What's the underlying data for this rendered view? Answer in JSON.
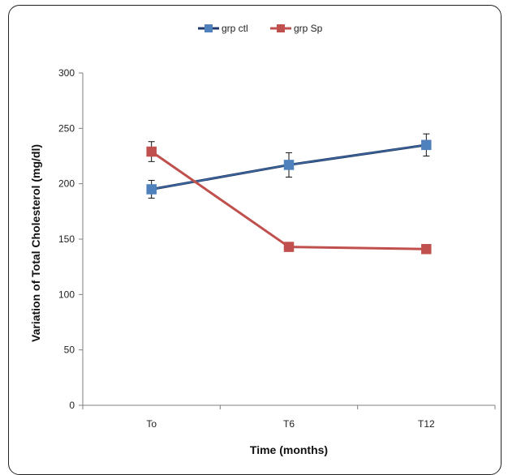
{
  "chart_data": {
    "type": "line",
    "title": "",
    "xlabel": "Time (months)",
    "ylabel": "Variation of Total Cholesterol (mg/dl)",
    "categories": [
      "To",
      "T6",
      "T12"
    ],
    "ylim": [
      0,
      300
    ],
    "yticks": [
      0,
      50,
      100,
      150,
      200,
      250,
      300
    ],
    "grid": false,
    "legend_position": "top",
    "series": [
      {
        "name": "grp ctl",
        "values": [
          195,
          217,
          235
        ],
        "errors": [
          8,
          11,
          10
        ],
        "color": "#4f81bd",
        "line_color": "#1f3a68"
      },
      {
        "name": "grp Sp",
        "values": [
          229,
          143,
          141
        ],
        "errors": [
          9,
          4,
          0
        ],
        "color": "#c0504d",
        "line_color": "#c0504d"
      }
    ]
  }
}
